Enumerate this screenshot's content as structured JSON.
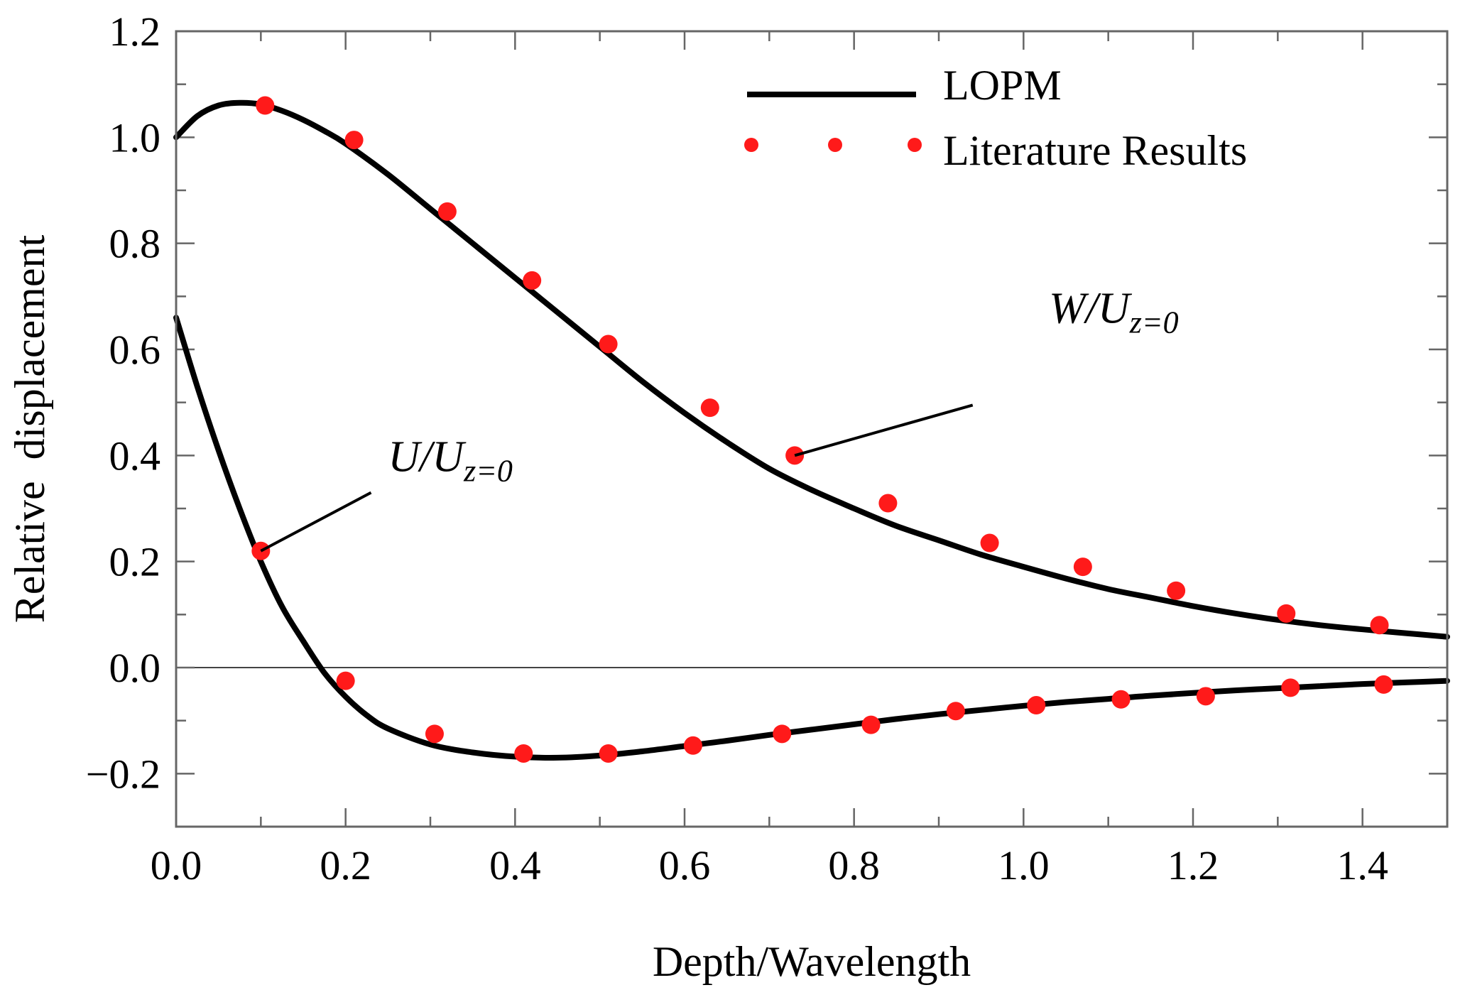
{
  "chart_data": {
    "type": "line",
    "xlabel": "Depth/Wavelength",
    "ylabel": "Relative  displacement",
    "xlim": [
      0,
      1.5
    ],
    "ylim": [
      -0.3,
      1.2
    ],
    "xticks": [
      0.0,
      0.2,
      0.4,
      0.6,
      0.8,
      1.0,
      1.2,
      1.4
    ],
    "xtick_labels": [
      "0.0",
      "0.2",
      "0.4",
      "0.6",
      "0.8",
      "1.0",
      "1.2",
      "1.4"
    ],
    "yticks": [
      -0.2,
      0.0,
      0.2,
      0.4,
      0.6,
      0.8,
      1.0,
      1.2
    ],
    "ytick_labels": [
      "−0.2",
      "0.0",
      "0.2",
      "0.4",
      "0.6",
      "0.8",
      "1.0",
      "1.2"
    ],
    "grid": false,
    "zero_line": true,
    "legend": {
      "position": "top-right",
      "entries": [
        {
          "label": "LOPM",
          "style": "solid-line",
          "color": "#000000"
        },
        {
          "label": "Literature Results",
          "style": "dots",
          "color": "#ff1a1a"
        }
      ]
    },
    "colors": {
      "line": "#000000",
      "dots": "#ff1a1a",
      "frame": "#666666"
    },
    "series": [
      {
        "name": "W/U_z=0",
        "label_main": "W/U",
        "label_sub": "z=0",
        "annotation_anchor": [
          0.73,
          0.4
        ],
        "annotation_text_at": [
          1.03,
          0.65
        ],
        "annotation_leader_end": [
          0.94,
          0.495
        ],
        "curve_x": [
          0,
          0.025,
          0.05,
          0.075,
          0.1,
          0.125,
          0.15,
          0.175,
          0.2,
          0.25,
          0.3,
          0.35,
          0.4,
          0.45,
          0.5,
          0.55,
          0.6,
          0.65,
          0.7,
          0.75,
          0.8,
          0.85,
          0.9,
          0.95,
          1.0,
          1.05,
          1.1,
          1.15,
          1.2,
          1.25,
          1.3,
          1.35,
          1.4,
          1.45,
          1.5
        ],
        "curve_y": [
          1.0,
          1.04,
          1.06,
          1.065,
          1.062,
          1.05,
          1.033,
          1.012,
          0.988,
          0.93,
          0.865,
          0.8,
          0.735,
          0.67,
          0.605,
          0.54,
          0.48,
          0.425,
          0.375,
          0.335,
          0.3,
          0.267,
          0.24,
          0.213,
          0.19,
          0.168,
          0.148,
          0.132,
          0.116,
          0.102,
          0.09,
          0.08,
          0.072,
          0.065,
          0.058
        ],
        "points_x": [
          0.105,
          0.21,
          0.32,
          0.42,
          0.51,
          0.63,
          0.73,
          0.84,
          0.96,
          1.07,
          1.18,
          1.31,
          1.42
        ],
        "points_y": [
          1.06,
          0.995,
          0.86,
          0.73,
          0.61,
          0.49,
          0.4,
          0.31,
          0.235,
          0.19,
          0.145,
          0.102,
          0.08
        ]
      },
      {
        "name": "U/U_z=0",
        "label_main": "U/U",
        "label_sub": "z=0",
        "annotation_anchor": [
          0.1,
          0.22
        ],
        "annotation_text_at": [
          0.25,
          0.37
        ],
        "annotation_leader_end": [
          0.23,
          0.33
        ],
        "curve_x": [
          0,
          0.025,
          0.05,
          0.075,
          0.1,
          0.125,
          0.15,
          0.175,
          0.2,
          0.225,
          0.25,
          0.3,
          0.35,
          0.4,
          0.45,
          0.5,
          0.55,
          0.6,
          0.65,
          0.7,
          0.75,
          0.8,
          0.85,
          0.9,
          0.95,
          1.0,
          1.05,
          1.1,
          1.15,
          1.2,
          1.25,
          1.3,
          1.35,
          1.4,
          1.45,
          1.5
        ],
        "curve_y": [
          0.66,
          0.53,
          0.41,
          0.3,
          0.2,
          0.115,
          0.05,
          -0.01,
          -0.055,
          -0.09,
          -0.115,
          -0.145,
          -0.16,
          -0.168,
          -0.17,
          -0.166,
          -0.158,
          -0.148,
          -0.138,
          -0.127,
          -0.117,
          -0.107,
          -0.097,
          -0.088,
          -0.08,
          -0.072,
          -0.065,
          -0.059,
          -0.053,
          -0.048,
          -0.043,
          -0.039,
          -0.035,
          -0.031,
          -0.028,
          -0.025
        ],
        "points_x": [
          0.1,
          0.2,
          0.305,
          0.41,
          0.51,
          0.61,
          0.715,
          0.82,
          0.92,
          1.015,
          1.115,
          1.215,
          1.315,
          1.425
        ],
        "points_y": [
          0.22,
          -0.025,
          -0.125,
          -0.162,
          -0.162,
          -0.147,
          -0.125,
          -0.108,
          -0.082,
          -0.071,
          -0.06,
          -0.054,
          -0.038,
          -0.032
        ]
      }
    ]
  }
}
